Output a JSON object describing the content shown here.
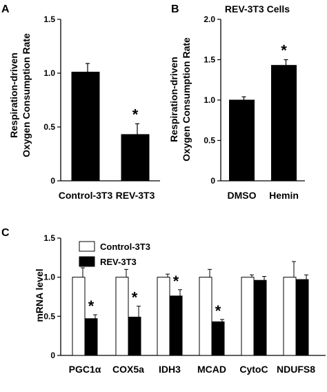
{
  "chart_data": [
    {
      "panel": "A",
      "type": "bar",
      "title": "",
      "ylabel_lines": [
        "Respiration-driven",
        "Oxygen Consumption Rate"
      ],
      "categories": [
        "Control-3T3",
        "REV-3T3"
      ],
      "values": [
        1.01,
        0.43
      ],
      "errors": [
        0.08,
        0.1
      ],
      "significant": [
        false,
        true
      ],
      "ylim": [
        0,
        1.5
      ],
      "yticks": [
        "0",
        "0.5",
        "1.0",
        "1.5"
      ],
      "bar_color": "#000000"
    },
    {
      "panel": "B",
      "type": "bar",
      "title": "REV-3T3 Cells",
      "ylabel_lines": [
        "Respiration-driven",
        "Oxygen Consumption Rate"
      ],
      "categories": [
        "DMSO",
        "Hemin"
      ],
      "values": [
        1.0,
        1.43
      ],
      "errors": [
        0.04,
        0.07
      ],
      "significant": [
        false,
        true
      ],
      "ylim": [
        0,
        2.0
      ],
      "yticks": [
        "0",
        "0.5",
        "1.0",
        "1.5",
        "2.0"
      ],
      "bar_color": "#000000"
    },
    {
      "panel": "C",
      "type": "bar",
      "title": "",
      "ylabel": "mRNA level",
      "categories": [
        "PGC1α",
        "COX5a",
        "IDH3",
        "MCAD",
        "CytoC",
        "NDUFS8"
      ],
      "series": [
        {
          "name": "Control-3T3",
          "color": "#ffffff",
          "values": [
            1.0,
            1.0,
            1.0,
            1.0,
            1.0,
            1.0
          ],
          "errors": [
            0.12,
            0.1,
            0.04,
            0.1,
            0.03,
            0.2
          ]
        },
        {
          "name": "REV-3T3",
          "color": "#000000",
          "values": [
            0.47,
            0.49,
            0.76,
            0.43,
            0.96,
            0.97
          ],
          "errors": [
            0.05,
            0.14,
            0.08,
            0.03,
            0.05,
            0.06
          ]
        }
      ],
      "significant": [
        true,
        true,
        true,
        true,
        false,
        false
      ],
      "ylim": [
        0,
        1.5
      ],
      "yticks": [
        "0",
        "0.5",
        "1.0",
        "1.5"
      ],
      "legend_position": "top-left"
    }
  ],
  "marks": {
    "significance": "*"
  }
}
